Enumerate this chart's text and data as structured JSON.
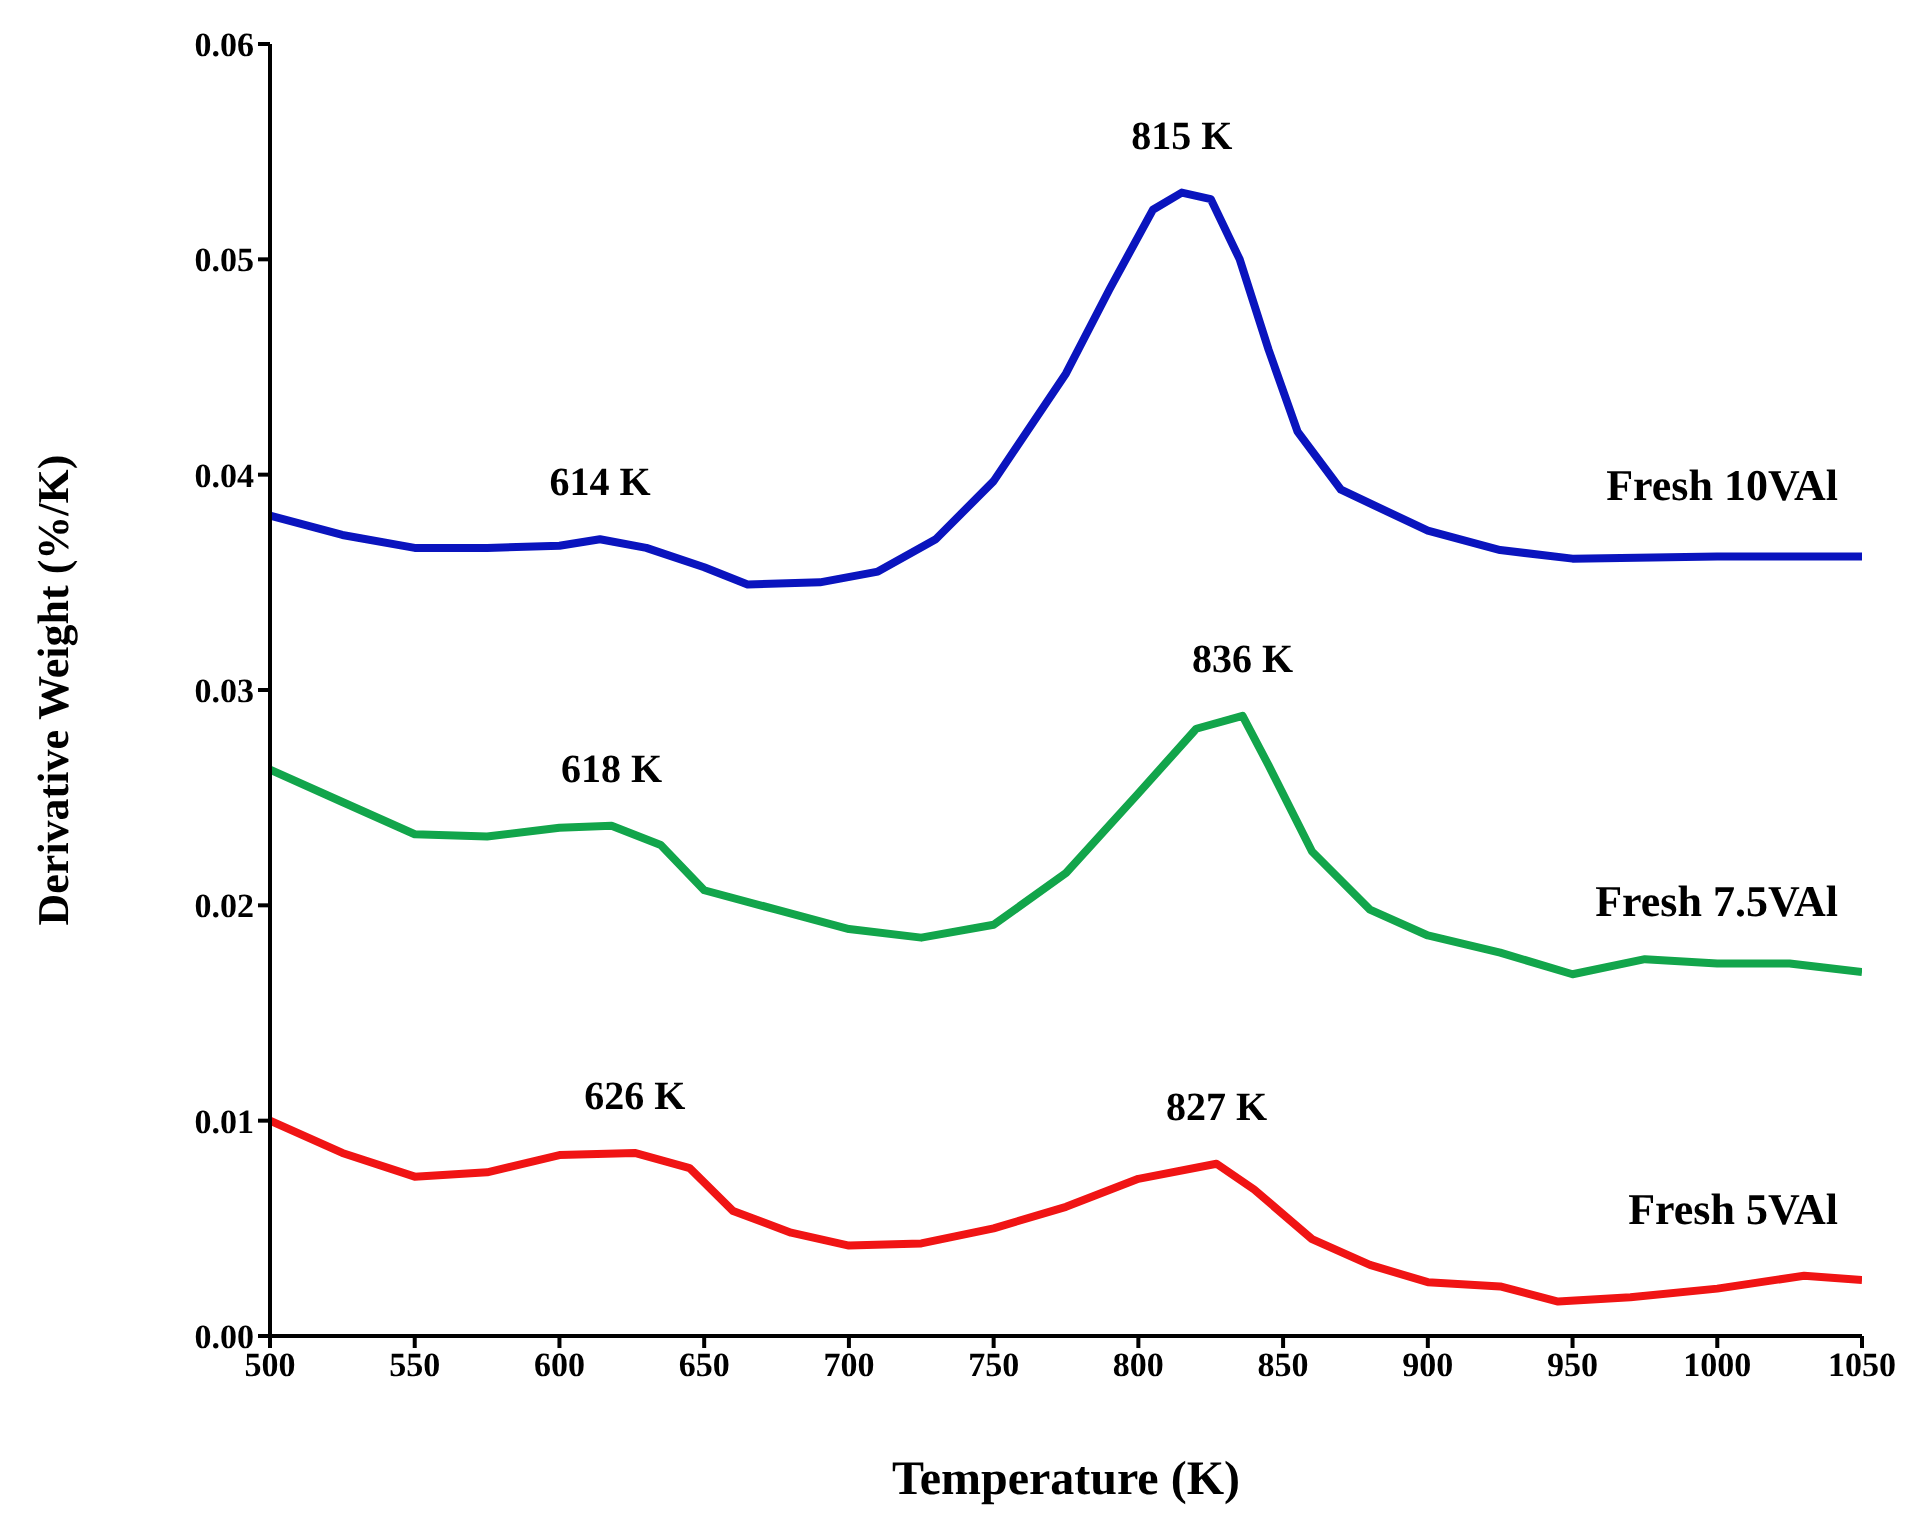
{
  "chart_data": {
    "type": "line",
    "xlabel": "Temperature (K)",
    "ylabel": "Derivative Weight (%/K)",
    "xlim": [
      500,
      1050
    ],
    "xticks": [
      500,
      550,
      600,
      650,
      700,
      750,
      800,
      850,
      900,
      950,
      1000,
      1050
    ],
    "ylim": [
      0,
      0.06
    ],
    "yticks": [
      {
        "value": 0,
        "label": "0.00"
      },
      {
        "value": 0.01,
        "label": "0.01"
      },
      {
        "value": 0.02,
        "label": "0.02"
      },
      {
        "value": 0.03,
        "label": "0.03"
      },
      {
        "value": 0.04,
        "label": "0.04"
      },
      {
        "value": 0.05,
        "label": "0.05"
      },
      {
        "value": 0.06,
        "label": "0.06"
      }
    ],
    "marker": "none",
    "line_style": "solid",
    "series": [
      {
        "name": "Fresh 10VAl",
        "color": "#0a14be",
        "x": [
          500,
          525,
          550,
          575,
          600,
          614,
          630,
          650,
          665,
          690,
          710,
          730,
          750,
          775,
          790,
          805,
          815,
          825,
          835,
          845,
          855,
          870,
          900,
          925,
          950,
          1000,
          1050
        ],
        "values": [
          0.0381,
          0.0372,
          0.0366,
          0.0366,
          0.0367,
          0.037,
          0.0366,
          0.0357,
          0.0349,
          0.035,
          0.0355,
          0.037,
          0.0397,
          0.0447,
          0.0486,
          0.0523,
          0.0531,
          0.0528,
          0.05,
          0.0458,
          0.042,
          0.0393,
          0.0374,
          0.0365,
          0.0361,
          0.0362,
          0.0362
        ]
      },
      {
        "name": "Fresh 7.5VAl",
        "color": "#12a54b",
        "x": [
          500,
          525,
          550,
          575,
          600,
          618,
          635,
          650,
          675,
          700,
          725,
          750,
          775,
          800,
          820,
          836,
          845,
          860,
          880,
          900,
          925,
          950,
          975,
          1000,
          1025,
          1050
        ],
        "values": [
          0.0263,
          0.0248,
          0.0233,
          0.0232,
          0.0236,
          0.0237,
          0.0228,
          0.0207,
          0.0198,
          0.0189,
          0.0185,
          0.0191,
          0.0215,
          0.0252,
          0.0282,
          0.0288,
          0.0265,
          0.0225,
          0.0198,
          0.0186,
          0.0178,
          0.0168,
          0.0175,
          0.0173,
          0.0173,
          0.0169
        ]
      },
      {
        "name": "Fresh 5VAl",
        "color": "#f01414",
        "x": [
          500,
          525,
          550,
          575,
          600,
          626,
          645,
          660,
          680,
          700,
          725,
          750,
          775,
          800,
          827,
          840,
          860,
          880,
          900,
          925,
          945,
          970,
          1000,
          1030,
          1050
        ],
        "values": [
          0.01,
          0.0085,
          0.0074,
          0.0076,
          0.0084,
          0.0085,
          0.0078,
          0.0058,
          0.0048,
          0.0042,
          0.0043,
          0.005,
          0.006,
          0.0073,
          0.008,
          0.0068,
          0.0045,
          0.0033,
          0.0025,
          0.0023,
          0.0016,
          0.0018,
          0.0022,
          0.0028,
          0.0026
        ]
      }
    ],
    "annotations": [
      {
        "text": "815 K",
        "x": 815,
        "y": 0.0531
      },
      {
        "text": "614 K",
        "x": 614,
        "y": 0.037
      },
      {
        "text": "836 K",
        "x": 836,
        "y": 0.0288
      },
      {
        "text": "618 K",
        "x": 618,
        "y": 0.0237
      },
      {
        "text": "827 K",
        "x": 827,
        "y": 0.008
      },
      {
        "text": "626 K",
        "x": 626,
        "y": 0.0085
      }
    ]
  }
}
